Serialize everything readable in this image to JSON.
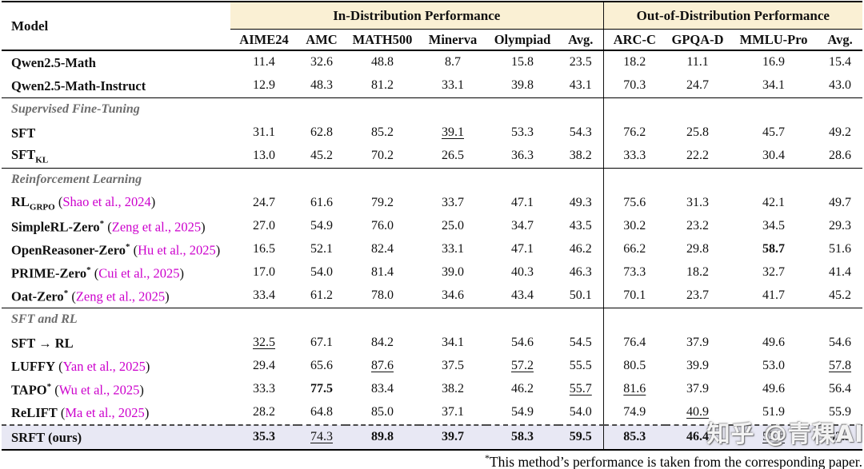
{
  "colors": {
    "group_header_bg": "#faf0d4",
    "highlight_row_bg": "#e8e8f4",
    "citation_text": "#cc00cc",
    "section_text": "#6d6d6d"
  },
  "header": {
    "model_col": "Model",
    "groups": [
      {
        "label": "In-Distribution Performance",
        "span": 6
      },
      {
        "label": "Out-of-Distribution Performance",
        "span": 4
      }
    ],
    "columns": [
      "AIME24",
      "AMC",
      "MATH500",
      "Minerva",
      "Olympiad",
      "Avg.",
      "ARC-C",
      "GPQA-D",
      "MMLU-Pro",
      "Avg."
    ]
  },
  "rows": [
    {
      "type": "data",
      "name": [
        {
          "t": "Qwen2.5-Math"
        }
      ],
      "values": [
        "11.4",
        "32.6",
        "48.8",
        "8.7",
        "15.8",
        "23.5",
        "18.2",
        "11.1",
        "16.9",
        "15.4"
      ]
    },
    {
      "type": "data",
      "name": [
        {
          "t": "Qwen2.5-Math-Instruct"
        }
      ],
      "rule_below": true,
      "values": [
        "12.9",
        "48.3",
        "81.2",
        "33.1",
        "39.8",
        "43.1",
        "70.3",
        "24.7",
        "34.1",
        "43.0"
      ]
    },
    {
      "type": "section",
      "label": "Supervised Fine-Tuning"
    },
    {
      "type": "data",
      "name": [
        {
          "t": "SFT"
        }
      ],
      "values": [
        "31.1",
        "62.8",
        "85.2",
        {
          "v": "39.1",
          "s": "u"
        },
        "53.3",
        "54.3",
        "76.2",
        "25.8",
        "45.7",
        "49.2"
      ]
    },
    {
      "type": "data",
      "name": [
        {
          "t": "SFT"
        },
        {
          "sub": "KL"
        }
      ],
      "rule_below": true,
      "values": [
        "13.0",
        "45.2",
        "70.2",
        "26.5",
        "36.3",
        "38.2",
        "33.3",
        "22.2",
        "30.4",
        "28.6"
      ]
    },
    {
      "type": "section",
      "label": "Reinforcement Learning"
    },
    {
      "type": "data",
      "name": [
        {
          "t": "RL"
        },
        {
          "sub": "GRPO"
        },
        {
          "cite": "Shao et al., 2024"
        }
      ],
      "values": [
        "24.7",
        "61.6",
        "79.2",
        "33.7",
        "47.1",
        "49.3",
        "75.6",
        "31.3",
        "42.1",
        "49.7"
      ]
    },
    {
      "type": "data",
      "name": [
        {
          "t": "SimpleRL-Zero"
        },
        {
          "sup": "*"
        },
        {
          "cite": "Zeng et al., 2025"
        }
      ],
      "values": [
        "27.0",
        "54.9",
        "76.0",
        "25.0",
        "34.7",
        "43.5",
        "30.2",
        "23.2",
        "34.5",
        "29.3"
      ]
    },
    {
      "type": "data",
      "name": [
        {
          "t": "OpenReasoner-Zero"
        },
        {
          "sup": "*"
        },
        {
          "cite": "Hu et al., 2025"
        }
      ],
      "values": [
        "16.5",
        "52.1",
        "82.4",
        "33.1",
        "47.1",
        "46.2",
        "66.2",
        "29.8",
        {
          "v": "58.7",
          "s": "b"
        },
        "51.6"
      ]
    },
    {
      "type": "data",
      "name": [
        {
          "t": "PRIME-Zero"
        },
        {
          "sup": "*"
        },
        {
          "cite": "Cui et al., 2025"
        }
      ],
      "values": [
        "17.0",
        "54.0",
        "81.4",
        "39.0",
        "40.3",
        "46.3",
        "73.3",
        "18.2",
        "32.7",
        "41.4"
      ]
    },
    {
      "type": "data",
      "name": [
        {
          "t": "Oat-Zero"
        },
        {
          "sup": "*"
        },
        {
          "cite": "Zeng et al., 2025"
        }
      ],
      "rule_below": true,
      "values": [
        "33.4",
        "61.2",
        "78.0",
        "34.6",
        "43.4",
        "50.1",
        "70.1",
        "23.7",
        "41.7",
        "45.2"
      ]
    },
    {
      "type": "section",
      "label": "SFT and RL"
    },
    {
      "type": "data",
      "name": [
        {
          "t": "SFT → RL"
        }
      ],
      "values": [
        {
          "v": "32.5",
          "s": "u"
        },
        "67.1",
        "84.2",
        "34.1",
        "54.6",
        "54.5",
        "76.4",
        "37.9",
        "49.6",
        "54.6"
      ]
    },
    {
      "type": "data",
      "name": [
        {
          "t": "LUFFY"
        },
        {
          "cite": "Yan et al., 2025"
        }
      ],
      "values": [
        "29.4",
        "65.6",
        {
          "v": "87.6",
          "s": "u"
        },
        "37.5",
        {
          "v": "57.2",
          "s": "u"
        },
        "55.5",
        "80.5",
        "39.9",
        "53.0",
        {
          "v": "57.8",
          "s": "u"
        }
      ]
    },
    {
      "type": "data",
      "name": [
        {
          "t": "TAPO"
        },
        {
          "sup": "*"
        },
        {
          "cite": "Wu et al., 2025"
        }
      ],
      "values": [
        "33.3",
        {
          "v": "77.5",
          "s": "b"
        },
        "83.4",
        "38.2",
        "46.2",
        {
          "v": "55.7",
          "s": "u"
        },
        {
          "v": "81.6",
          "s": "u"
        },
        "37.9",
        "49.6",
        "56.4"
      ]
    },
    {
      "type": "data",
      "name": [
        {
          "t": "ReLIFT"
        },
        {
          "cite": "Ma et al., 2025"
        }
      ],
      "values": [
        "28.2",
        "64.8",
        "85.0",
        "37.1",
        "54.9",
        "54.0",
        "74.9",
        {
          "v": "40.9",
          "s": "u"
        },
        "51.9",
        "55.9"
      ]
    },
    {
      "type": "data",
      "name": [
        {
          "t": "SRFT (ours)"
        }
      ],
      "highlight": true,
      "dashed_top": true,
      "bottom_rule": true,
      "values": [
        {
          "v": "35.3",
          "s": "b"
        },
        {
          "v": "74.3",
          "s": "u"
        },
        {
          "v": "89.8",
          "s": "b"
        },
        {
          "v": "39.7",
          "s": "b"
        },
        {
          "v": "58.3",
          "s": "b"
        },
        {
          "v": "59.5",
          "s": "b"
        },
        {
          "v": "85.3",
          "s": "b"
        },
        {
          "v": "46.4",
          "s": "b"
        },
        {
          "v": "55.8",
          "s": "u"
        },
        {
          "v": "62.5",
          "s": "b"
        }
      ]
    }
  ],
  "footnote": {
    "marker": "*",
    "text": "This method’s performance is taken from the corresponding paper."
  },
  "watermark": "知乎 @青稞AI"
}
